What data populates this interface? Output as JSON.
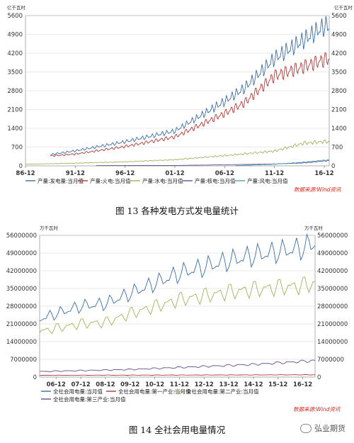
{
  "figure1": {
    "caption": "图 13 各种发电方式发电量统计",
    "unit_left": "亿千瓦时",
    "unit_right": "亿千瓦时",
    "source": "数据来源:Wind资讯"
  },
  "figure2": {
    "caption": "图 14 全社会用电量情况",
    "unit_left": "万千瓦时",
    "unit_right": "万千瓦时",
    "source": "数据来源:Wind资讯"
  },
  "watermark": {
    "text": "弘业期货",
    "icon": "wechat-icon"
  },
  "chart_data": [
    {
      "type": "line",
      "title": "",
      "x_ticks": [
        "86-12",
        "91-12",
        "96-12",
        "01-12",
        "06-12",
        "11-12",
        "16-12"
      ],
      "y_ticks": [
        0,
        700,
        1400,
        2100,
        2800,
        3500,
        4200,
        4900,
        5600
      ],
      "ylim": [
        0,
        5600
      ],
      "x_start": "1986-12",
      "x_end": "2017-06",
      "seasonal_amplitude": 0.08,
      "series": [
        {
          "name": "产量:发电量:当月值",
          "color": "#3a6ea8",
          "x": [
            "1989-06",
            "1991-12",
            "1996-12",
            "2001-12",
            "2006-12",
            "2008-12",
            "2011-12",
            "2014-12",
            "2016-12",
            "2017-06"
          ],
          "values": [
            420,
            560,
            900,
            1300,
            2400,
            2900,
            4000,
            4700,
            5200,
            5200
          ]
        },
        {
          "name": "产量:火电:当月值",
          "color": "#b03838",
          "x": [
            "1989-06",
            "1991-12",
            "1996-12",
            "2001-12",
            "2006-12",
            "2008-12",
            "2011-12",
            "2014-12",
            "2016-12",
            "2017-06"
          ],
          "values": [
            370,
            440,
            720,
            1080,
            1950,
            2350,
            3350,
            3700,
            3950,
            4000
          ]
        },
        {
          "name": "产量:水电:当月值",
          "color": "#9bb55a",
          "x": [
            "1986-12",
            "1991-12",
            "1996-12",
            "2001-12",
            "2006-12",
            "2011-12",
            "2014-12",
            "2016-12",
            "2017-06"
          ],
          "values": [
            60,
            100,
            150,
            230,
            380,
            550,
            850,
            900,
            900
          ]
        },
        {
          "name": "产量:核电:当月值",
          "color": "#6a4f93",
          "x": [
            "1994-01",
            "2001-12",
            "2006-12",
            "2011-12",
            "2014-12",
            "2016-12",
            "2017-06"
          ],
          "values": [
            10,
            15,
            40,
            70,
            110,
            180,
            200
          ]
        },
        {
          "name": "产量:风电:当月值",
          "color": "#4aa4b8",
          "x": [
            "2008-01",
            "2011-12",
            "2014-12",
            "2016-12",
            "2017-06"
          ],
          "values": [
            10,
            60,
            140,
            210,
            230
          ]
        }
      ]
    },
    {
      "type": "line",
      "title": "",
      "x_ticks": [
        "06-12",
        "07-12",
        "08-12",
        "09-12",
        "10-12",
        "11-12",
        "12-12",
        "13-12",
        "14-12",
        "15-12",
        "16-12"
      ],
      "y_ticks": [
        0,
        7000000,
        14000000,
        21000000,
        28000000,
        35000000,
        42000000,
        49000000,
        56000000
      ],
      "ylim": [
        0,
        56000000
      ],
      "x_start": "2006-04",
      "x_end": "2017-06",
      "seasonal_amplitude": 0.1,
      "series": [
        {
          "name": "全社会用电量:当月值",
          "color": "#3a6ea8",
          "x": [
            "2006-04",
            "2007-12",
            "2008-12",
            "2009-12",
            "2011-12",
            "2013-12",
            "2014-12",
            "2016-12",
            "2017-06"
          ],
          "values": [
            23000000,
            28000000,
            29000000,
            33000000,
            41000000,
            46000000,
            48000000,
            51000000,
            53000000
          ]
        },
        {
          "name": "全社会用电量:第一产业:当月值",
          "color": "#b03838",
          "x": [
            "2006-04",
            "2011-12",
            "2016-12",
            "2017-06"
          ],
          "values": [
            700000,
            800000,
            900000,
            900000
          ]
        },
        {
          "name": "全社会用电量:第二产业:当月值",
          "color": "#9bb55a",
          "x": [
            "2006-04",
            "2007-12",
            "2008-12",
            "2009-12",
            "2011-12",
            "2013-12",
            "2014-12",
            "2016-12",
            "2017-06"
          ],
          "values": [
            18000000,
            21000000,
            21500000,
            25000000,
            30500000,
            33500000,
            34500000,
            36000000,
            37000000
          ]
        },
        {
          "name": "全社会用电量:第三产业:当月值",
          "color": "#6a4f93",
          "x": [
            "2006-04",
            "2009-12",
            "2011-12",
            "2014-12",
            "2016-12",
            "2017-06"
          ],
          "values": [
            2200000,
            3000000,
            3800000,
            5000000,
            6200000,
            6500000
          ]
        }
      ]
    }
  ]
}
